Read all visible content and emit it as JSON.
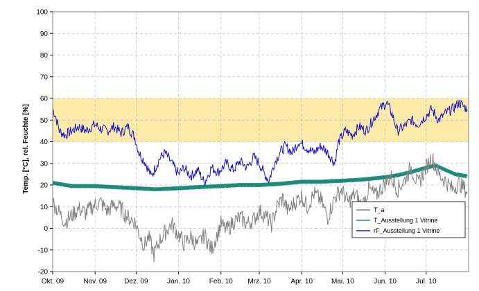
{
  "chart_data": {
    "type": "line",
    "title": "",
    "ylabel": "Temp. [°C], rel. Feuchte [%]",
    "xlabel": "",
    "ylim": [
      -20,
      100
    ],
    "yticks": [
      -20,
      -10,
      0,
      10,
      20,
      30,
      40,
      50,
      60,
      70,
      80,
      90,
      100
    ],
    "x_start": "2009-10-01",
    "x_end": "2010-07-31",
    "xtick_labels": [
      "Okt. 09",
      "Nov. 09",
      "Dez. 09",
      "Jan. 10",
      "Feb. 10",
      "Mrz. 10",
      "Apr. 10",
      "Mai. 10",
      "Jun. 10",
      "Jul. 10"
    ],
    "grid": true,
    "legend_position": "bottom-right",
    "target_band": {
      "from": 40,
      "to": 60,
      "color": "#fde9a8"
    },
    "series": [
      {
        "name": "T_a",
        "color": "#808080",
        "points": [
          [
            "2009-10-01",
            12
          ],
          [
            "2009-10-05",
            8
          ],
          [
            "2009-10-10",
            3
          ],
          [
            "2009-10-15",
            6
          ],
          [
            "2009-10-20",
            9
          ],
          [
            "2009-10-25",
            7
          ],
          [
            "2009-10-30",
            10
          ],
          [
            "2009-11-05",
            12
          ],
          [
            "2009-11-10",
            8
          ],
          [
            "2009-11-15",
            11
          ],
          [
            "2009-11-20",
            9
          ],
          [
            "2009-11-25",
            5
          ],
          [
            "2009-11-30",
            3
          ],
          [
            "2009-12-03",
            -2
          ],
          [
            "2009-12-07",
            -8
          ],
          [
            "2009-12-10",
            -4
          ],
          [
            "2009-12-14",
            -12
          ],
          [
            "2009-12-18",
            -6
          ],
          [
            "2009-12-22",
            -2
          ],
          [
            "2009-12-27",
            2
          ],
          [
            "2010-01-01",
            -3
          ],
          [
            "2010-01-05",
            -7
          ],
          [
            "2010-01-10",
            -4
          ],
          [
            "2010-01-15",
            -8
          ],
          [
            "2010-01-20",
            -3
          ],
          [
            "2010-01-25",
            -10
          ],
          [
            "2010-01-28",
            -5
          ],
          [
            "2010-02-01",
            2
          ],
          [
            "2010-02-05",
            -1
          ],
          [
            "2010-02-10",
            3
          ],
          [
            "2010-02-15",
            5
          ],
          [
            "2010-02-20",
            2
          ],
          [
            "2010-02-25",
            4
          ],
          [
            "2010-03-01",
            8
          ],
          [
            "2010-03-05",
            6
          ],
          [
            "2010-03-10",
            2
          ],
          [
            "2010-03-14",
            10
          ],
          [
            "2010-03-18",
            14
          ],
          [
            "2010-03-22",
            8
          ],
          [
            "2010-03-27",
            12
          ],
          [
            "2010-04-01",
            15
          ],
          [
            "2010-04-05",
            10
          ],
          [
            "2010-04-10",
            16
          ],
          [
            "2010-04-15",
            13
          ],
          [
            "2010-04-20",
            5
          ],
          [
            "2010-04-25",
            14
          ],
          [
            "2010-04-30",
            18
          ],
          [
            "2010-05-05",
            12
          ],
          [
            "2010-05-10",
            16
          ],
          [
            "2010-05-15",
            10
          ],
          [
            "2010-05-20",
            18
          ],
          [
            "2010-05-25",
            15
          ],
          [
            "2010-05-31",
            20
          ],
          [
            "2010-06-05",
            24
          ],
          [
            "2010-06-10",
            18
          ],
          [
            "2010-06-15",
            22
          ],
          [
            "2010-06-20",
            28
          ],
          [
            "2010-06-25",
            20
          ],
          [
            "2010-06-30",
            27
          ],
          [
            "2010-07-05",
            33
          ],
          [
            "2010-07-10",
            25
          ],
          [
            "2010-07-15",
            22
          ],
          [
            "2010-07-20",
            18
          ],
          [
            "2010-07-25",
            21
          ],
          [
            "2010-07-31",
            17
          ]
        ]
      },
      {
        "name": "T_Ausstellung 1 Vitrine",
        "color": "#1a8a7a",
        "points": [
          [
            "2009-10-01",
            21
          ],
          [
            "2009-10-15",
            19.5
          ],
          [
            "2009-11-01",
            19.5
          ],
          [
            "2009-11-15",
            19
          ],
          [
            "2009-12-01",
            18.5
          ],
          [
            "2009-12-15",
            18
          ],
          [
            "2010-01-01",
            18.5
          ],
          [
            "2010-01-15",
            19
          ],
          [
            "2010-02-01",
            19.5
          ],
          [
            "2010-02-15",
            20
          ],
          [
            "2010-03-01",
            20
          ],
          [
            "2010-03-15",
            20.5
          ],
          [
            "2010-04-01",
            21.5
          ],
          [
            "2010-04-15",
            21.5
          ],
          [
            "2010-05-01",
            22
          ],
          [
            "2010-05-15",
            22.5
          ],
          [
            "2010-05-31",
            23.5
          ],
          [
            "2010-06-10",
            24.5
          ],
          [
            "2010-06-20",
            26
          ],
          [
            "2010-07-01",
            28
          ],
          [
            "2010-07-08",
            29
          ],
          [
            "2010-07-15",
            27
          ],
          [
            "2010-07-22",
            25
          ],
          [
            "2010-07-31",
            24
          ]
        ]
      },
      {
        "name": "rF_Ausstellung 1 Vitrine",
        "color": "#1010d0",
        "points": [
          [
            "2009-10-01",
            55
          ],
          [
            "2009-10-03",
            52
          ],
          [
            "2009-10-06",
            45
          ],
          [
            "2009-10-10",
            43
          ],
          [
            "2009-10-15",
            45
          ],
          [
            "2009-10-20",
            47
          ],
          [
            "2009-10-25",
            45
          ],
          [
            "2009-11-01",
            48
          ],
          [
            "2009-11-05",
            46
          ],
          [
            "2009-11-10",
            45
          ],
          [
            "2009-11-15",
            47
          ],
          [
            "2009-11-20",
            44
          ],
          [
            "2009-11-25",
            47
          ],
          [
            "2009-11-30",
            42
          ],
          [
            "2009-12-03",
            35
          ],
          [
            "2009-12-08",
            30
          ],
          [
            "2009-12-12",
            24
          ],
          [
            "2009-12-15",
            28
          ],
          [
            "2009-12-18",
            32
          ],
          [
            "2009-12-22",
            35
          ],
          [
            "2009-12-27",
            30
          ],
          [
            "2010-01-01",
            25
          ],
          [
            "2010-01-05",
            28
          ],
          [
            "2010-01-10",
            24
          ],
          [
            "2010-01-15",
            27
          ],
          [
            "2010-01-20",
            21
          ],
          [
            "2010-01-25",
            28
          ],
          [
            "2010-01-30",
            26
          ],
          [
            "2010-02-05",
            30
          ],
          [
            "2010-02-10",
            27
          ],
          [
            "2010-02-15",
            31
          ],
          [
            "2010-02-20",
            28
          ],
          [
            "2010-02-25",
            33
          ],
          [
            "2010-03-01",
            30
          ],
          [
            "2010-03-05",
            25
          ],
          [
            "2010-03-08",
            22
          ],
          [
            "2010-03-12",
            30
          ],
          [
            "2010-03-16",
            35
          ],
          [
            "2010-03-20",
            38
          ],
          [
            "2010-03-25",
            35
          ],
          [
            "2010-03-30",
            40
          ],
          [
            "2010-04-05",
            37
          ],
          [
            "2010-04-10",
            35
          ],
          [
            "2010-04-15",
            38
          ],
          [
            "2010-04-20",
            35
          ],
          [
            "2010-04-25",
            30
          ],
          [
            "2010-04-28",
            40
          ],
          [
            "2010-05-03",
            45
          ],
          [
            "2010-05-08",
            43
          ],
          [
            "2010-05-13",
            47
          ],
          [
            "2010-05-18",
            45
          ],
          [
            "2010-05-23",
            50
          ],
          [
            "2010-05-28",
            55
          ],
          [
            "2010-06-02",
            58
          ],
          [
            "2010-06-06",
            53
          ],
          [
            "2010-06-10",
            45
          ],
          [
            "2010-06-15",
            47
          ],
          [
            "2010-06-20",
            50
          ],
          [
            "2010-06-25",
            48
          ],
          [
            "2010-07-01",
            52
          ],
          [
            "2010-07-05",
            55
          ],
          [
            "2010-07-10",
            50
          ],
          [
            "2010-07-15",
            53
          ],
          [
            "2010-07-20",
            55
          ],
          [
            "2010-07-25",
            58
          ],
          [
            "2010-07-31",
            55
          ]
        ]
      }
    ]
  }
}
